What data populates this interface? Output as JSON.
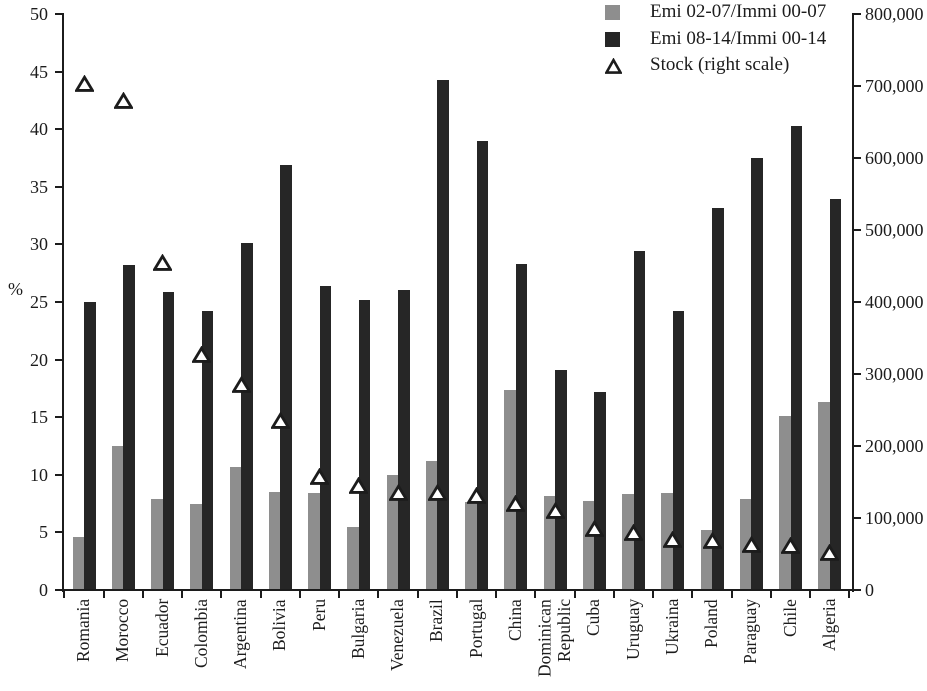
{
  "chart_data": {
    "type": "bar",
    "categories": [
      "Romania",
      "Morocco",
      "Ecuador",
      "Colombia",
      "Argentina",
      "Bolivia",
      "Peru",
      "Bulgaria",
      "Venezuela",
      "Brazil",
      "Portugal",
      "China",
      "Dominican Republic",
      "Cuba",
      "Uruguay",
      "Ukraina",
      "Poland",
      "Paraguay",
      "Chile",
      "Algeria"
    ],
    "series": [
      {
        "name": "Emi 02-07/Immi 00-07",
        "type": "bar",
        "axis": "left",
        "color": "#8e8e8e",
        "values": [
          4.6,
          12.5,
          7.9,
          7.5,
          10.7,
          8.5,
          8.4,
          5.5,
          10.0,
          11.2,
          7.6,
          17.4,
          8.2,
          7.7,
          8.3,
          8.4,
          5.2,
          7.9,
          15.1,
          16.3
        ]
      },
      {
        "name": "Emi 08-14/Immi 00-14",
        "type": "bar",
        "axis": "left",
        "color": "#262626",
        "values": [
          25.0,
          28.2,
          25.9,
          24.2,
          30.1,
          36.9,
          26.4,
          25.2,
          26.0,
          44.3,
          39.0,
          28.3,
          19.1,
          17.2,
          29.4,
          24.2,
          33.2,
          37.5,
          40.3,
          33.9
        ]
      },
      {
        "name": "Stock (right scale)",
        "type": "scatter",
        "marker": "triangle-open",
        "axis": "right",
        "marker_fill": "#ffffff",
        "marker_stroke": "#1c1c1c",
        "values": [
          704000,
          680000,
          455000,
          327000,
          286000,
          236000,
          157000,
          145000,
          136000,
          135000,
          131000,
          120000,
          110000,
          86000,
          80000,
          70000,
          69000,
          63000,
          62000,
          52000
        ]
      }
    ],
    "left_axis": {
      "label": "%",
      "min": 0,
      "max": 50,
      "tick_step": 5,
      "tick_labels": [
        "0",
        "5",
        "10",
        "15",
        "20",
        "25",
        "30",
        "35",
        "40",
        "45",
        "50"
      ]
    },
    "right_axis": {
      "min": 0,
      "max": 800000,
      "tick_step": 100000,
      "tick_labels": [
        "0",
        "100,000",
        "200,000",
        "300,000",
        "400,000",
        "500,000",
        "600,000",
        "700,000",
        "800,000"
      ]
    },
    "grid": false,
    "legend_position": "top-right"
  }
}
